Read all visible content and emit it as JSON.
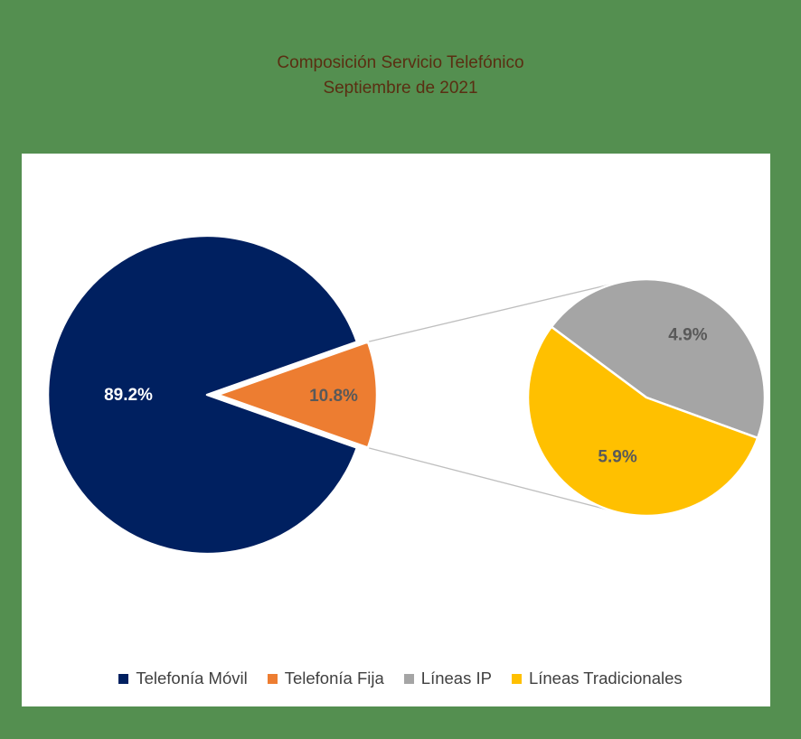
{
  "chart_data": {
    "type": "pie",
    "title": "Composición Servicio Telefónico",
    "subtitle": "Septiembre de 2021",
    "variant": "pie-of-pie",
    "main_pie": [
      {
        "label": "Telefonía Móvil",
        "value": 89.2,
        "value_label": "89.2%",
        "color": "#002060",
        "label_color": "#ffffff"
      },
      {
        "label": "Telefonía Fija",
        "value": 10.8,
        "value_label": "10.8%",
        "color": "#ed7d31",
        "label_color": "#595959",
        "exploded": true
      }
    ],
    "secondary_pie": [
      {
        "label": "Líneas IP",
        "value": 4.9,
        "value_label": "4.9%",
        "color": "#a5a5a5",
        "label_color": "#595959"
      },
      {
        "label": "Líneas Tradicionales",
        "value": 5.9,
        "value_label": "5.9%",
        "color": "#ffc000",
        "label_color": "#595959"
      }
    ],
    "legend": [
      {
        "label": "Telefonía Móvil",
        "color": "#002060"
      },
      {
        "label": "Telefonía Fija",
        "color": "#ed7d31"
      },
      {
        "label": "Líneas IP",
        "color": "#a5a5a5"
      },
      {
        "label": "Líneas Tradicionales",
        "color": "#ffc000"
      }
    ],
    "legend_position": "bottom"
  },
  "colors": {
    "background": "#548f50",
    "plot_area": "#ffffff",
    "title_text": "#5a2e12",
    "connector": "#bfbfbf"
  }
}
